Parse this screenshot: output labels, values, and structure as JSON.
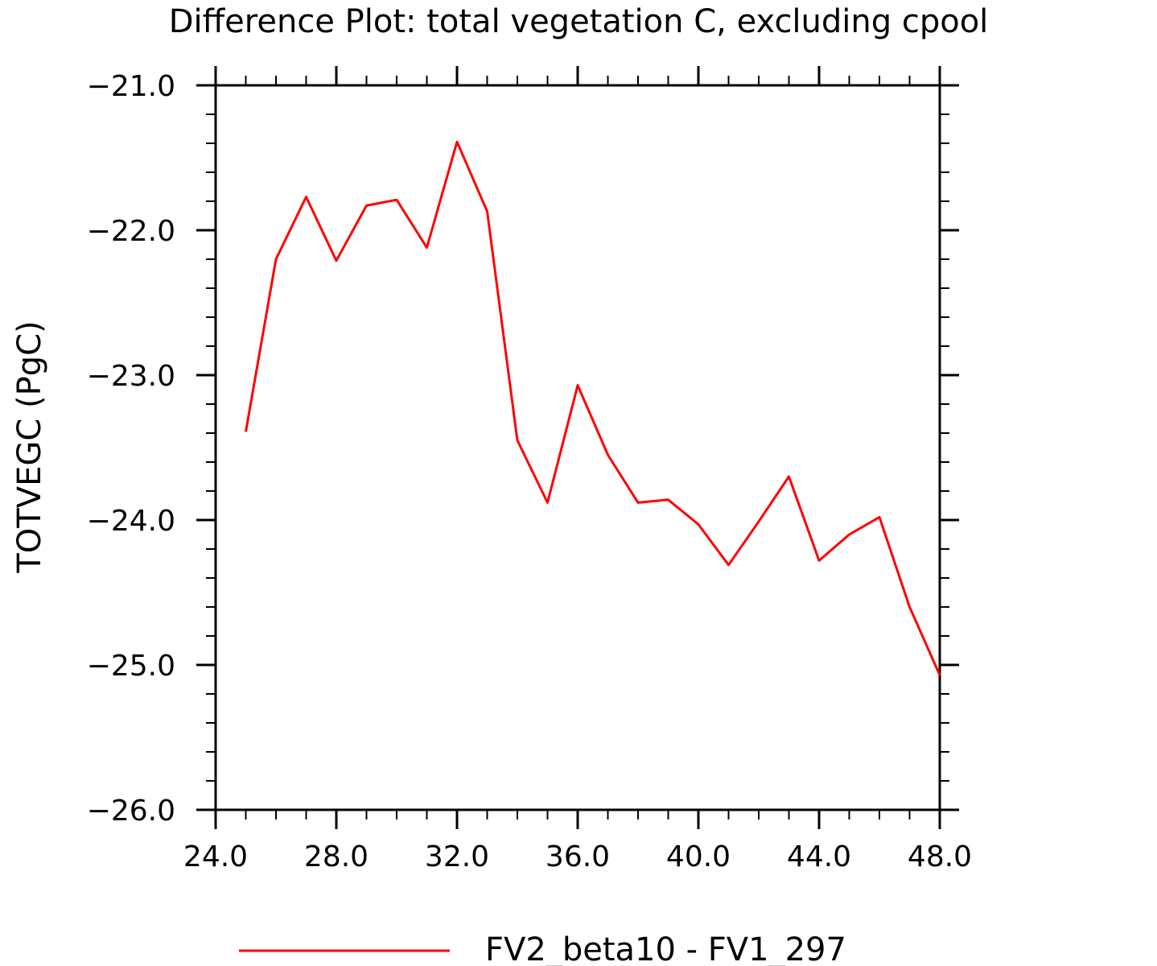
{
  "chart_data": {
    "type": "line",
    "title": "Difference Plot: total vegetation C, excluding cpool",
    "xlabel": "",
    "ylabel": "TOTVEGC   (PgC)",
    "xlim": [
      24.0,
      48.0
    ],
    "ylim": [
      -26.0,
      -21.0
    ],
    "x_ticks": [
      "24.0",
      "28.0",
      "32.0",
      "36.0",
      "40.0",
      "44.0",
      "48.0"
    ],
    "y_ticks": [
      "-21.0",
      "-22.0",
      "-23.0",
      "-24.0",
      "-25.0",
      "-26.0"
    ],
    "grid": false,
    "legend_position": "bottom",
    "series": [
      {
        "name": "FV2_beta10 - FV1_297",
        "color": "#ff0000",
        "x": [
          25,
          26,
          27,
          28,
          29,
          30,
          31,
          32,
          33,
          34,
          35,
          36,
          37,
          38,
          39,
          40,
          41,
          42,
          43,
          44,
          45,
          46,
          47,
          48
        ],
        "y": [
          -23.39,
          -22.2,
          -21.77,
          -22.21,
          -21.83,
          -21.79,
          -22.12,
          -21.39,
          -21.87,
          -23.45,
          -23.88,
          -23.07,
          -23.55,
          -23.88,
          -23.86,
          -24.03,
          -24.31,
          -24.01,
          -23.7,
          -24.28,
          -24.1,
          -23.98,
          -24.6,
          -25.07
        ]
      }
    ]
  }
}
